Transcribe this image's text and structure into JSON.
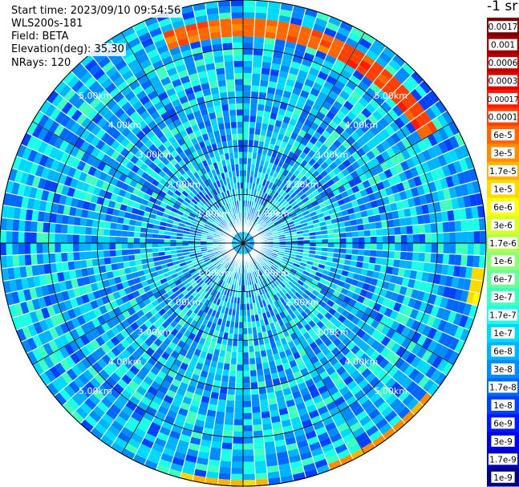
{
  "info": {
    "start_time": "Start time: 2023/09/10 09:54:56",
    "instrument": "WLS200s-181",
    "field": "Field: BETA",
    "elevation": "Elevation(deg): 35.30",
    "nrays": "NRays: 120"
  },
  "colorbar": {
    "unit_label": "-1 sr",
    "ticks": [
      "0.0017",
      "0.001",
      "0.0006",
      "0.0003",
      "0.00017",
      "0.0001",
      "6e-5",
      "3e-5",
      "1.7e-5",
      "1e-5",
      "6e-6",
      "3e-6",
      "1.7e-6",
      "1e-6",
      "6e-7",
      "3e-7",
      "1.7e-7",
      "1e-7",
      "6e-8",
      "3e-8",
      "1.7e-8",
      "1e-8",
      "6e-9",
      "3e-9",
      "1.7e-9",
      "1e-9"
    ],
    "colors": [
      "#7a0000",
      "#9c0000",
      "#bd0000",
      "#df0000",
      "#ff1a00",
      "#ff4000",
      "#ff6600",
      "#ff8c00",
      "#ffb300",
      "#ffd900",
      "#ffff00",
      "#d9ff26",
      "#b3ff4d",
      "#8cff73",
      "#66ff99",
      "#40ffbf",
      "#1affe6",
      "#00d9ff",
      "#00b3ff",
      "#008cff",
      "#0066ff",
      "#0040ff",
      "#001aff",
      "#0000e6",
      "#0000bf",
      "#000080"
    ]
  },
  "range_rings": [
    {
      "label": "1.00km"
    },
    {
      "label": "2.00km"
    },
    {
      "label": "3.00km"
    },
    {
      "label": "4.00km"
    },
    {
      "label": "5.00km"
    }
  ],
  "chart_data": {
    "type": "heatmap",
    "projection": "polar PPI",
    "field": "BETA",
    "n_rays": 120,
    "range_max_km": 5.0,
    "range_tick_labels": [
      "1.00km",
      "2.00km",
      "3.00km",
      "4.00km",
      "5.00km"
    ],
    "color_scale": "log",
    "value_range": [
      1e-09,
      0.0017
    ],
    "dominant_value_range": [
      1e-08,
      3e-07
    ],
    "high_value_regions": [
      {
        "description": "arc near outer edge",
        "azimuth_deg": [
          340,
          40
        ],
        "range_km": [
          4.3,
          4.6
        ],
        "value": 6e-05
      },
      {
        "description": "arc near outer edge",
        "azimuth_deg": [
          28,
          60
        ],
        "range_km": [
          4.3,
          4.6
        ],
        "value": 0.0001
      },
      {
        "description": "patch near outer edge",
        "azimuth_deg": [
          95,
          105
        ],
        "range_km": [
          4.8,
          5.0
        ],
        "value": 1e-05
      },
      {
        "description": "arc at outer edge",
        "azimuth_deg": [
          130,
          160
        ],
        "range_km": [
          4.9,
          5.0
        ],
        "value": 3e-05
      },
      {
        "description": "arc at outer edge",
        "azimuth_deg": [
          175,
          195
        ],
        "range_km": [
          4.9,
          5.0
        ],
        "value": 1.7e-05
      }
    ]
  }
}
